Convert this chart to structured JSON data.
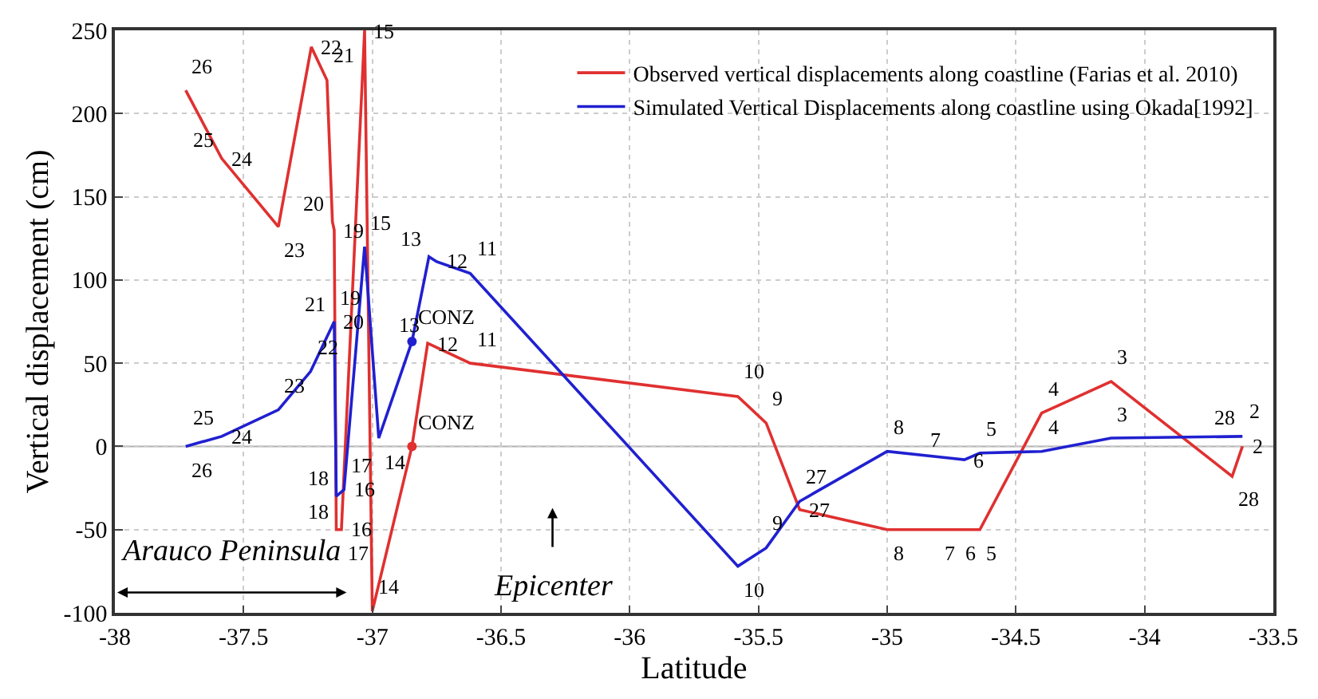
{
  "chart_data": {
    "type": "line",
    "xlabel": "Latitude",
    "ylabel": "Vertical displacement (cm)",
    "xlim": [
      -38,
      -33.5
    ],
    "xticks": [
      -38,
      -37.5,
      -37,
      -36.5,
      -36,
      -35.5,
      -35,
      -34.5,
      -34,
      -33.5
    ],
    "ylim": [
      -100,
      250
    ],
    "yticks": [
      -100,
      -50,
      0,
      50,
      100,
      150,
      200,
      250
    ],
    "grid": true,
    "legend": "top right",
    "marker": "none",
    "line_style": "solid",
    "ref_lines": [
      {
        "axis": "y",
        "value": 0,
        "color": "#b0b0b0"
      }
    ],
    "series": [
      {
        "name": "Observed vertical displacements along coastline (Farias et al. 2010)",
        "color": "#e03030",
        "x": [
          -37.725,
          -37.585,
          -37.365,
          -37.237,
          -37.176,
          -37.155,
          -37.148,
          -37.14,
          -37.12,
          -37.03,
          -37.0,
          -36.846,
          -36.785,
          -36.62,
          -35.58,
          -35.47,
          -35.34,
          -35.0,
          -34.8,
          -34.72,
          -34.64,
          -34.4,
          -34.13,
          -33.66,
          -33.62
        ],
        "values": [
          214,
          173,
          132,
          240,
          220,
          135,
          130,
          -50,
          -50,
          250,
          -99,
          0,
          62,
          50,
          30,
          14,
          -38,
          -50,
          -50,
          -50,
          -50,
          20,
          39,
          -18,
          0
        ]
      },
      {
        "name": "Simulated Vertical Displacements along coastline using Okada[1992]",
        "color": "#2020d0",
        "x": [
          -37.725,
          -37.585,
          -37.365,
          -37.24,
          -37.148,
          -37.14,
          -37.11,
          -37.03,
          -36.975,
          -36.846,
          -36.78,
          -36.75,
          -36.62,
          -35.58,
          -35.47,
          -35.34,
          -35.0,
          -34.76,
          -34.7,
          -34.64,
          -34.4,
          -34.13,
          -33.62
        ],
        "values": [
          0,
          6,
          22,
          45,
          75,
          -30,
          -26,
          120,
          5,
          63,
          114,
          111,
          104,
          -72,
          -61,
          -33,
          -3,
          -7,
          -8,
          -4,
          -3,
          5,
          6
        ]
      },
      {
        "type": "scatter",
        "marker": "circle",
        "color": "#e03030",
        "x": [
          -36.846
        ],
        "values": [
          0
        ]
      },
      {
        "type": "scatter",
        "marker": "circle",
        "color": "#2020d0",
        "x": [
          -36.846
        ],
        "values": [
          63
        ]
      }
    ],
    "annotations": [
      "Arauco Peninsula",
      "Epicenter",
      {
        "text": "26",
        "x": -37.725,
        "y": 214
      },
      {
        "text": "24",
        "x": -37.585,
        "y": 173
      },
      {
        "text": "25",
        "x": -37.585,
        "y": 173
      },
      {
        "text": "23",
        "x": -37.365,
        "y": 132
      },
      {
        "text": "22",
        "x": -37.237,
        "y": 240
      },
      {
        "text": "21",
        "x": -37.176,
        "y": 220
      },
      {
        "text": "19",
        "x": -37.148,
        "y": 130
      },
      {
        "text": "20",
        "x": -37.155,
        "y": 135
      },
      {
        "text": "16",
        "x": -37.12,
        "y": -50
      },
      {
        "text": "18",
        "x": -37.14,
        "y": -50
      },
      {
        "text": "17",
        "x": -37.12,
        "y": -50
      },
      {
        "text": "15",
        "x": -37.03,
        "y": 250
      },
      {
        "text": "14",
        "x": -37.0,
        "y": -99
      },
      {
        "text": "CONZ",
        "x": -36.846,
        "y": 0
      },
      {
        "text": "12",
        "x": -36.785,
        "y": 62
      },
      {
        "text": "CONZ",
        "x": -36.846,
        "y": 63
      },
      {
        "text": "13",
        "x": -36.785,
        "y": 62
      },
      {
        "text": "11",
        "x": -36.62,
        "y": 50
      },
      {
        "text": "10",
        "x": -35.58,
        "y": 30
      },
      {
        "text": "9",
        "x": -35.47,
        "y": 14
      },
      {
        "text": "27",
        "x": -35.34,
        "y": -38
      },
      {
        "text": "8",
        "x": -35.0,
        "y": -50
      },
      {
        "text": "7",
        "x": -34.8,
        "y": -50
      },
      {
        "text": "6",
        "x": -34.72,
        "y": -50
      },
      {
        "text": "5",
        "x": -34.64,
        "y": -50
      },
      {
        "text": "4",
        "x": -34.4,
        "y": 20
      },
      {
        "text": "3",
        "x": -34.13,
        "y": 39
      },
      {
        "text": "28",
        "x": -33.66,
        "y": -18
      },
      {
        "text": "2",
        "x": -33.62,
        "y": 0
      },
      {
        "text": "26",
        "x": -37.725,
        "y": 0
      },
      {
        "text": "24",
        "x": -37.585,
        "y": 6
      },
      {
        "text": "25",
        "x": -37.585,
        "y": 6
      },
      {
        "text": "23",
        "x": -37.365,
        "y": 22
      },
      {
        "text": "22",
        "x": -37.24,
        "y": 45
      },
      {
        "text": "20",
        "x": -37.148,
        "y": 75
      },
      {
        "text": "21",
        "x": -37.148,
        "y": 75
      },
      {
        "text": "19",
        "x": -37.148,
        "y": 75
      },
      {
        "text": "16",
        "x": -37.11,
        "y": -26
      },
      {
        "text": "18",
        "x": -37.14,
        "y": -30
      },
      {
        "text": "17",
        "x": -37.11,
        "y": -26
      },
      {
        "text": "15",
        "x": -37.03,
        "y": 120
      },
      {
        "text": "14",
        "x": -36.975,
        "y": 5
      },
      {
        "text": "12",
        "x": -36.75,
        "y": 111
      },
      {
        "text": "13",
        "x": -36.78,
        "y": 114
      },
      {
        "text": "11",
        "x": -36.62,
        "y": 104
      },
      {
        "text": "10",
        "x": -35.58,
        "y": -72
      },
      {
        "text": "9",
        "x": -35.47,
        "y": -61
      },
      {
        "text": "27",
        "x": -35.34,
        "y": -33
      },
      {
        "text": "8",
        "x": -35.0,
        "y": -3
      },
      {
        "text": "6",
        "x": -34.7,
        "y": -8
      },
      {
        "text": "7",
        "x": -34.76,
        "y": -7
      },
      {
        "text": "5",
        "x": -34.64,
        "y": -4
      },
      {
        "text": "4",
        "x": -34.4,
        "y": -3
      },
      {
        "text": "3",
        "x": -34.13,
        "y": 5
      },
      {
        "text": "2",
        "x": -33.62,
        "y": 6
      },
      {
        "text": "28",
        "x": -33.62,
        "y": 6
      }
    ]
  }
}
